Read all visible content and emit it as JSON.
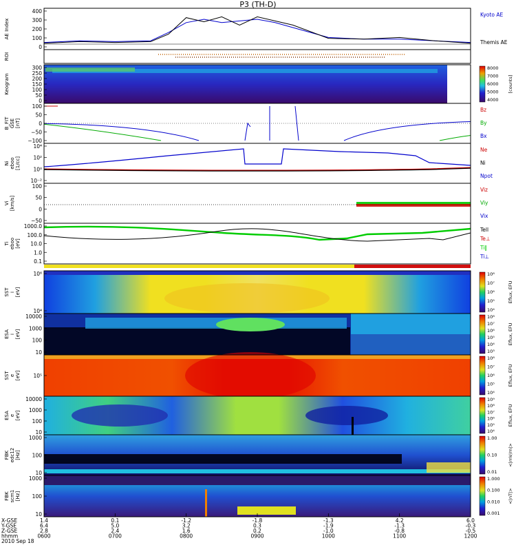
{
  "title": "P3 (TH-D)",
  "date_label": "2010 Sep 18",
  "colors": {
    "kyoto": "#0000cc",
    "themis": "#000000",
    "bz": "#cc0000",
    "by": "#00aa00",
    "bx": "#0000cc",
    "ne": "#cc0000",
    "ni": "#000000",
    "npot": "#0000cc",
    "vi": "#00cc00",
    "vz": "#cc0000",
    "tepar": "#000000",
    "teperp": "#cc0000",
    "tipar": "#00cc00",
    "tiperp": "#0000cc"
  },
  "panels": [
    {
      "id": "ae",
      "ylabel": [
        "AE Index"
      ],
      "ticks": [
        "400",
        "300",
        "200",
        "100",
        "0"
      ],
      "legend": [
        {
          "text": "Kyoto AE",
          "color": "#0000cc"
        },
        {
          "text": "Themis AE",
          "color": "#000000"
        }
      ]
    },
    {
      "id": "roi",
      "ylabel": [
        "ROI"
      ],
      "ticks": [],
      "legend": []
    },
    {
      "id": "keogram",
      "ylabel": [
        "Keogram"
      ],
      "ticks": [
        "300",
        "250",
        "200",
        "150",
        "100",
        "50",
        "0"
      ],
      "legend": [],
      "colorbar": {
        "ticks": [
          "8000",
          "7000",
          "6000",
          "5000",
          "4000"
        ],
        "label": "[counts]"
      }
    },
    {
      "id": "bfield",
      "ylabel": [
        "B_FIT",
        "GSE",
        "[nT]"
      ],
      "ticks": [
        "100",
        "50",
        "0",
        "−50",
        "−100"
      ],
      "legend": [
        {
          "text": "Bz",
          "color": "#cc0000"
        },
        {
          "text": "By",
          "color": "#00aa00"
        },
        {
          "text": "Bx",
          "color": "#0000cc"
        }
      ]
    },
    {
      "id": "density",
      "ylabel": [
        "Ni",
        "eboo",
        "[1/cc]"
      ],
      "ticks": [
        "10⁴",
        "10²",
        "10⁰",
        "10⁻²"
      ],
      "legend": [
        {
          "text": "Ne",
          "color": "#cc0000"
        },
        {
          "text": "Ni",
          "color": "#000000"
        },
        {
          "text": "Npot",
          "color": "#0000cc"
        }
      ]
    },
    {
      "id": "velocity",
      "ylabel": [
        "Vi",
        "[km/s]"
      ],
      "ticks": [
        "100",
        "50",
        "0",
        "−50"
      ],
      "legend": [
        {
          "text": "Viz",
          "color": "#cc0000"
        },
        {
          "text": "Viy",
          "color": "#00aa00"
        },
        {
          "text": "Vix",
          "color": "#0000cc"
        }
      ]
    },
    {
      "id": "temp",
      "ylabel": [
        "Ti",
        "eboo",
        "[eV]"
      ],
      "ticks": [
        "1000.0",
        "100.0",
        "10.0",
        "1.0",
        "0.1"
      ],
      "legend": [
        {
          "text": "Tell",
          "color": "#000000"
        },
        {
          "text": "Te⊥",
          "color": "#cc0000"
        },
        {
          "text": "Ti‖",
          "color": "#00cc00"
        },
        {
          "text": "Ti⊥",
          "color": "#0000cc"
        }
      ]
    },
    {
      "id": "sst_i",
      "ylabel": [
        "SST",
        "i",
        "[eV]"
      ],
      "ticks": [
        "10⁶",
        "10⁴"
      ],
      "legend": [],
      "colorbar": {
        "ticks": [
          "10⁸",
          "10⁷",
          "10⁶",
          "10⁵",
          "10⁴"
        ],
        "label": "Eflux, EFU"
      }
    },
    {
      "id": "esa_i",
      "ylabel": [
        "ESA",
        "i",
        "[eV]"
      ],
      "ticks": [
        "10000",
        "1000",
        "100",
        "10"
      ],
      "legend": [],
      "colorbar": {
        "ticks": [
          "10⁸",
          "10⁷",
          "10⁶",
          "10⁵",
          "10⁴",
          "10³"
        ],
        "label": "Eflux, EFU"
      }
    },
    {
      "id": "sst_e",
      "ylabel": [
        "SST",
        "e",
        "[eV]"
      ],
      "ticks": [
        "10⁵"
      ],
      "legend": [],
      "colorbar": {
        "ticks": [
          "10⁸",
          "10⁷",
          "10⁶",
          "10⁵",
          "10⁴"
        ],
        "label": "Eflux, EFU"
      }
    },
    {
      "id": "esa_e",
      "ylabel": [
        "ESA",
        "e",
        "[eV]"
      ],
      "ticks": [
        "10000",
        "1000",
        "100",
        "10"
      ],
      "legend": [],
      "colorbar": {
        "ticks": [
          "10⁹",
          "10⁸",
          "10⁷",
          "10⁶",
          "10⁵",
          "10⁴"
        ],
        "label": "Eflux, EFU"
      }
    },
    {
      "id": "fbk1",
      "ylabel": [
        "FBK",
        "edc12",
        "[Hz]"
      ],
      "ticks": [
        "1000",
        "100",
        "10"
      ],
      "legend": [],
      "colorbar": {
        "ticks": [
          "1.00",
          "0.10",
          "0.01"
        ],
        "label": "<|mV/m|>"
      }
    },
    {
      "id": "fbk2",
      "ylabel": [
        "FBK",
        "scm1",
        "[Hz]"
      ],
      "ticks": [
        "1000",
        "100",
        "10"
      ],
      "legend": [],
      "colorbar": {
        "ticks": [
          "1.000",
          "0.100",
          "0.010",
          "0.001"
        ],
        "label": "<|nT|>"
      }
    }
  ],
  "xaxis": {
    "row_labels": [
      "X-GSE",
      "Y-GSE",
      "Z-GSE",
      "hhmm",
      "2010 Sep 18"
    ],
    "columns": [
      {
        "x": "1.4",
        "y": "6.4",
        "z": "2.8",
        "t": "0600"
      },
      {
        "x": "0.1",
        "y": "5.0",
        "z": "2.4",
        "t": "0700"
      },
      {
        "x": "-1.2",
        "y": "3.2",
        "z": "1.6",
        "t": "0800"
      },
      {
        "x": "-1.8",
        "y": "0.3",
        "z": "0.2",
        "t": "0900"
      },
      {
        "x": "-1.3",
        "y": "-1.9",
        "z": "-1.0",
        "t": "1000"
      },
      {
        "x": "4.2",
        "y": "-1.3",
        "z": "-0.8",
        "t": "1100"
      },
      {
        "x": "6.0",
        "y": "-0.3",
        "z": "-0.5",
        "t": "1200"
      }
    ]
  },
  "chart_data": {
    "type": "line",
    "title": "P3 (TH-D)",
    "x_unit": "hhmm",
    "x": [
      "0600",
      "0700",
      "0800",
      "0900",
      "1000",
      "1100",
      "1200"
    ],
    "series": [
      {
        "name": "Kyoto AE",
        "x": [
          "0600",
          "0630",
          "0700",
          "0730",
          "0745",
          "0800",
          "0815",
          "0830",
          "0845",
          "0900",
          "0915",
          "0930",
          "1000",
          "1030",
          "1100",
          "1130",
          "1200"
        ],
        "values": [
          20,
          40,
          30,
          40,
          140,
          260,
          300,
          260,
          280,
          300,
          260,
          200,
          80,
          60,
          60,
          40,
          20
        ]
      },
      {
        "name": "Themis AE",
        "x": [
          "0600",
          "0630",
          "0700",
          "0730",
          "0745",
          "0800",
          "0815",
          "0830",
          "0845",
          "0900",
          "0915",
          "0930",
          "1000",
          "1030",
          "1100",
          "1130",
          "1200"
        ],
        "values": [
          10,
          30,
          20,
          30,
          120,
          320,
          270,
          330,
          230,
          330,
          280,
          230,
          70,
          60,
          80,
          40,
          10
        ]
      }
    ]
  }
}
